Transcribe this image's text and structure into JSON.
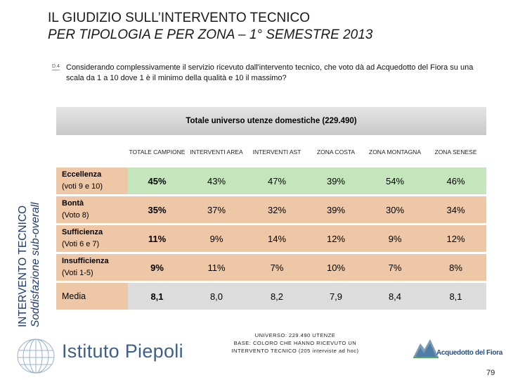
{
  "title": {
    "line1": "IL GIUDIZIO SULL’INTERVENTO TECNICO",
    "line2": "PER TIPOLOGIA E PER ZONA – 1° SEMESTRE 2013"
  },
  "side_label": {
    "line1": "INTERVENTO TECNICO",
    "line2": "Soddisfazione sub-overall"
  },
  "question": {
    "icon_label": "D.4",
    "text": "Considerando complessivamente il servizio ricevuto dall'intervento tecnico, che voto dà ad Acquedotto del Fiora su una scala da 1 a 10 dove 1 è il minimo della qualità e 10 il massimo?"
  },
  "table": {
    "header": "Totale universo utenze domestiche (229.490)",
    "columns": [
      "TOTALE CAMPIONE",
      "INTERVENTI AREA",
      "INTERVENTI AST",
      "ZONA COSTA",
      "ZONA MONTAGNA",
      "ZONA SENESE"
    ],
    "rows": [
      {
        "label": "Eccellenza",
        "sub": "(voti 9 e 10)",
        "values": [
          "45%",
          "43%",
          "47%",
          "39%",
          "54%",
          "46%"
        ]
      },
      {
        "label": "Bontà",
        "sub": "(Voto 8)",
        "values": [
          "35%",
          "37%",
          "32%",
          "39%",
          "30%",
          "34%"
        ]
      },
      {
        "label": "Sufficienza",
        "sub": "(Voti 6 e 7)",
        "values": [
          "11%",
          "9%",
          "14%",
          "12%",
          "9%",
          "12%"
        ]
      },
      {
        "label": "Insufficienza",
        "sub": "(Voti 1-5)",
        "values": [
          "9%",
          "11%",
          "7%",
          "10%",
          "7%",
          "8%"
        ]
      },
      {
        "label": "Media",
        "sub": "",
        "values": [
          "8,1",
          "8,0",
          "8,2",
          "7,9",
          "8,4",
          "8,1"
        ]
      }
    ]
  },
  "footer": {
    "line1": "UNIVERSO: 229.490 UTENZE",
    "line2": "BASE: COLORO CHE HANNO RICEVUTO UN",
    "line3": "INTERVENTO TECNICO (205 interviste ad hoc)"
  },
  "logos": {
    "left": "Istituto Piepoli",
    "right": "Acquedotto del Fiora"
  },
  "page_number": "79",
  "colors": {
    "row_label_bg": "#eec8a6",
    "highlight_green": "#c5e6bc",
    "grey_row": "#dcdcdc",
    "brand_blue": "#3d5f88"
  }
}
